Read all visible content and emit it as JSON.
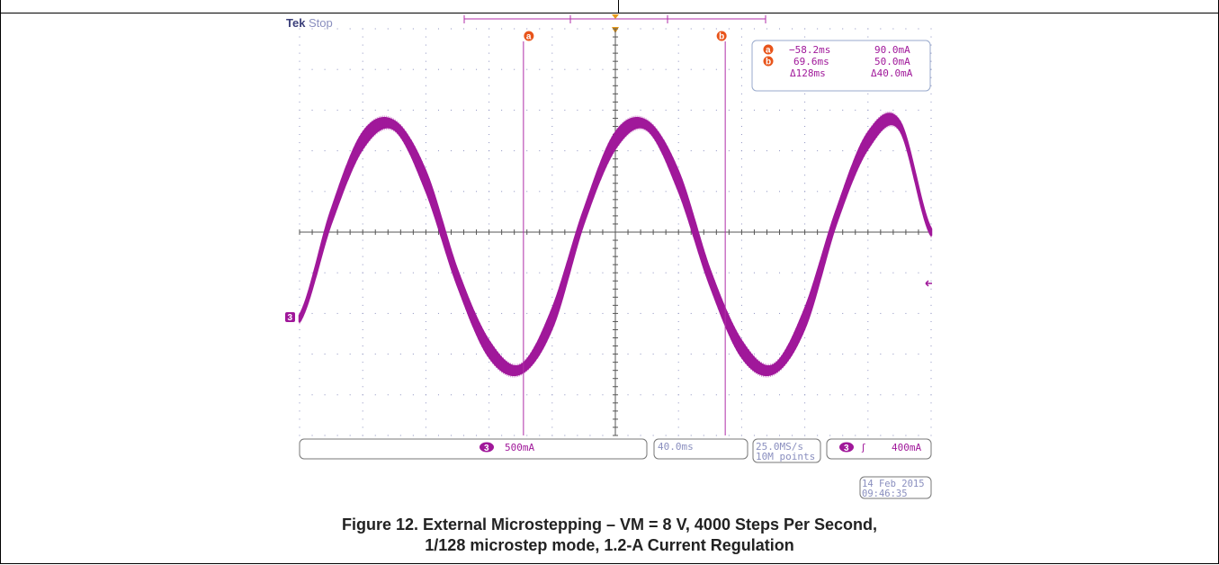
{
  "scope": {
    "brand": "Tek",
    "state": "Stop",
    "trace_color": "#a0189a",
    "cursor_color": "#b02ea8",
    "label_color": "#8a8fbf",
    "cursor_badge_color": "#e8541a",
    "channel_label": "3",
    "cursor_a_label": "a",
    "cursor_b_label": "b",
    "readout": {
      "a_time": "−58.2ms",
      "a_value": "90.0mA",
      "b_time": "69.6ms",
      "b_value": "50.0mA",
      "delta_time": "Δ128ms",
      "delta_value": "Δ40.0mA"
    },
    "status": {
      "channel_scale": "500mA",
      "timebase": "40.0ms",
      "sample_rate": "25.0MS/s",
      "record_length": "10M points",
      "trigger_level": "400mA",
      "trigger_slope_icon": "ʃ"
    },
    "date": "14 Feb  2015",
    "time": "09:46:35"
  },
  "chart_data": {
    "type": "line",
    "title": "",
    "xlabel": "",
    "ylabel": "",
    "x_unit": "ms",
    "y_unit": "mA",
    "x_range_ms": [
      -200,
      200
    ],
    "y_range_mA": [
      -1850,
      2150
    ],
    "time_per_div_ms": 40.0,
    "current_per_div_mA": 500,
    "grid": true,
    "grid_divisions": [
      10,
      10
    ],
    "series": [
      {
        "x": [
          -200,
          -180,
          -160,
          -140,
          -120,
          -100,
          -80,
          -60,
          -40,
          -20,
          0,
          20,
          40,
          60,
          80,
          100,
          120,
          140,
          160,
          180,
          200
        ],
        "y": [
          -700,
          300,
          1050,
          1200,
          650,
          -300,
          -1000,
          -1200,
          -700,
          300,
          1050,
          1200,
          650,
          -300,
          -1000,
          -1200,
          -700,
          300,
          1050,
          1200,
          150
        ],
        "envelope_width_mA": [
          60,
          120,
          150,
          80,
          180,
          140,
          150,
          80,
          180,
          120,
          150,
          80,
          180,
          140,
          150,
          80,
          180,
          120,
          150,
          80,
          60
        ]
      }
    ],
    "cursors": {
      "a_ms": -58.2,
      "b_ms": 69.6
    }
  },
  "caption": {
    "line1": "Figure 12. External Microstepping – VM = 8 V, 4000 Steps Per Second,",
    "line2": "1/128 microstep mode, 1.2-A Current Regulation"
  }
}
